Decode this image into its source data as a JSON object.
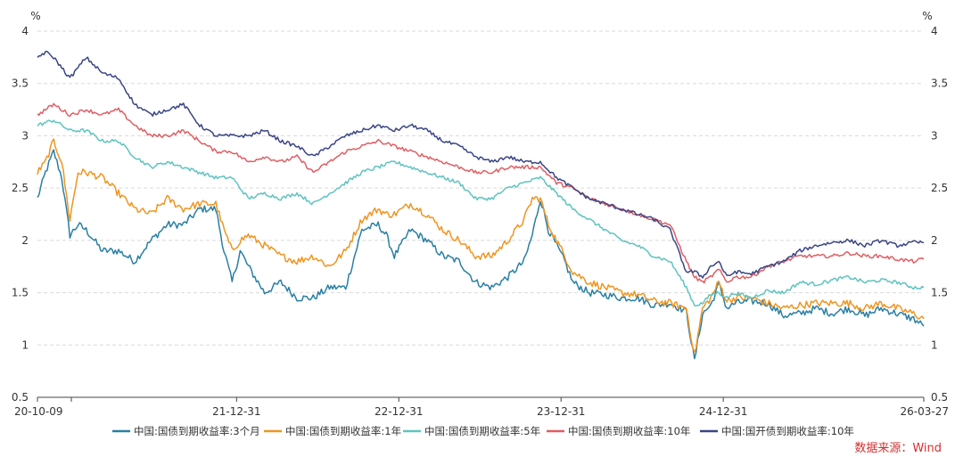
{
  "chart_data": {
    "type": "line",
    "title": "",
    "ylabel_left": "%",
    "ylabel_right": "%",
    "ylim": [
      0.5,
      4
    ],
    "yticks": [
      "0.5",
      "1",
      "1.5",
      "2",
      "2.5",
      "3",
      "3.5",
      "4"
    ],
    "grid": "horizontal dashed",
    "x_range": [
      "2020-10-09",
      "2026-03-27"
    ],
    "xticks": [
      {
        "label": "20-10-09",
        "t": 0
      },
      {
        "label": "21-12-31",
        "t": 1.2275
      },
      {
        "label": "22-12-31",
        "t": 2.2275
      },
      {
        "label": "23-12-31",
        "t": 3.2275
      },
      {
        "label": "24-12-31",
        "t": 4.2275
      },
      {
        "label": "26-03-27",
        "t": 5.4633
      }
    ],
    "x_unit": "years since 2020-10-09",
    "legend_position": "bottom",
    "series": [
      {
        "name": "中国:国债到期收益率:3个月",
        "color": "#2a7fa3",
        "x": [
          0,
          0.05,
          0.1,
          0.15,
          0.2,
          0.25,
          0.3,
          0.4,
          0.5,
          0.6,
          0.7,
          0.8,
          0.9,
          1.0,
          1.1,
          1.15,
          1.2,
          1.25,
          1.3,
          1.4,
          1.5,
          1.6,
          1.7,
          1.8,
          1.9,
          2.0,
          2.1,
          2.15,
          2.2,
          2.3,
          2.4,
          2.5,
          2.6,
          2.7,
          2.8,
          2.9,
          3.0,
          3.05,
          3.1,
          3.15,
          3.2,
          3.25,
          3.3,
          3.4,
          3.5,
          3.6,
          3.7,
          3.8,
          3.9,
          4.0,
          4.05,
          4.1,
          4.15,
          4.2,
          4.25,
          4.3,
          4.4,
          4.5,
          4.6,
          4.7,
          4.8,
          4.9,
          5.0,
          5.1,
          5.2,
          5.3,
          5.4,
          5.4633
        ],
        "y": [
          2.4,
          2.65,
          2.85,
          2.6,
          2.05,
          2.15,
          2.1,
          1.9,
          1.9,
          1.8,
          2.0,
          2.15,
          2.15,
          2.3,
          2.3,
          1.9,
          1.6,
          1.9,
          1.75,
          1.5,
          1.6,
          1.45,
          1.45,
          1.55,
          1.55,
          2.1,
          2.15,
          2.05,
          1.85,
          2.1,
          2.0,
          1.85,
          1.8,
          1.6,
          1.55,
          1.65,
          1.8,
          2.05,
          2.4,
          2.1,
          1.95,
          1.8,
          1.6,
          1.5,
          1.48,
          1.45,
          1.45,
          1.38,
          1.4,
          1.32,
          0.85,
          1.3,
          1.38,
          1.58,
          1.35,
          1.4,
          1.42,
          1.4,
          1.28,
          1.3,
          1.35,
          1.3,
          1.35,
          1.28,
          1.35,
          1.3,
          1.25,
          1.18
        ]
      },
      {
        "name": "中国:国债到期收益率:1年",
        "color": "#ef9520",
        "x": [
          0,
          0.05,
          0.1,
          0.15,
          0.2,
          0.25,
          0.3,
          0.4,
          0.5,
          0.6,
          0.7,
          0.8,
          0.9,
          1.0,
          1.1,
          1.15,
          1.2,
          1.25,
          1.3,
          1.4,
          1.5,
          1.6,
          1.7,
          1.8,
          1.9,
          2.0,
          2.1,
          2.15,
          2.2,
          2.3,
          2.4,
          2.5,
          2.6,
          2.7,
          2.8,
          2.9,
          3.0,
          3.05,
          3.1,
          3.15,
          3.2,
          3.25,
          3.3,
          3.4,
          3.5,
          3.6,
          3.7,
          3.8,
          3.9,
          4.0,
          4.05,
          4.1,
          4.15,
          4.2,
          4.25,
          4.3,
          4.4,
          4.5,
          4.6,
          4.7,
          4.8,
          4.9,
          5.0,
          5.1,
          5.2,
          5.3,
          5.4,
          5.4633
        ],
        "y": [
          2.65,
          2.75,
          2.95,
          2.75,
          2.2,
          2.65,
          2.65,
          2.6,
          2.45,
          2.3,
          2.25,
          2.4,
          2.3,
          2.35,
          2.35,
          2.1,
          1.9,
          2.0,
          2.05,
          1.95,
          1.85,
          1.8,
          1.85,
          1.75,
          1.9,
          2.2,
          2.3,
          2.25,
          2.25,
          2.35,
          2.25,
          2.1,
          2.0,
          1.85,
          1.85,
          2.0,
          2.2,
          2.4,
          2.4,
          2.15,
          2.0,
          1.85,
          1.7,
          1.6,
          1.55,
          1.5,
          1.48,
          1.42,
          1.4,
          1.35,
          0.9,
          1.35,
          1.45,
          1.6,
          1.42,
          1.45,
          1.45,
          1.4,
          1.35,
          1.38,
          1.4,
          1.4,
          1.4,
          1.35,
          1.4,
          1.35,
          1.3,
          1.25
        ]
      },
      {
        "name": "中国:国债到期收益率:5年",
        "color": "#5fc3c0",
        "x": [
          0,
          0.1,
          0.2,
          0.3,
          0.4,
          0.5,
          0.6,
          0.7,
          0.8,
          0.9,
          1.0,
          1.1,
          1.2,
          1.3,
          1.4,
          1.5,
          1.6,
          1.7,
          1.8,
          1.9,
          2.0,
          2.1,
          2.2,
          2.3,
          2.4,
          2.5,
          2.6,
          2.7,
          2.8,
          2.9,
          3.0,
          3.1,
          3.2,
          3.3,
          3.4,
          3.5,
          3.6,
          3.7,
          3.8,
          3.9,
          4.0,
          4.05,
          4.1,
          4.15,
          4.2,
          4.25,
          4.3,
          4.4,
          4.5,
          4.6,
          4.7,
          4.8,
          4.9,
          5.0,
          5.1,
          5.2,
          5.3,
          5.4,
          5.4633
        ],
        "y": [
          3.1,
          3.15,
          3.05,
          3.05,
          2.95,
          2.95,
          2.8,
          2.7,
          2.75,
          2.7,
          2.65,
          2.6,
          2.6,
          2.4,
          2.45,
          2.4,
          2.45,
          2.35,
          2.45,
          2.55,
          2.65,
          2.7,
          2.75,
          2.7,
          2.65,
          2.6,
          2.55,
          2.4,
          2.4,
          2.5,
          2.55,
          2.6,
          2.45,
          2.3,
          2.2,
          2.1,
          2.0,
          1.95,
          1.85,
          1.8,
          1.55,
          1.38,
          1.4,
          1.48,
          1.5,
          1.45,
          1.5,
          1.45,
          1.52,
          1.5,
          1.6,
          1.58,
          1.62,
          1.65,
          1.6,
          1.62,
          1.6,
          1.55,
          1.55
        ]
      },
      {
        "name": "中国:国债到期收益率:10年",
        "color": "#e05e63",
        "x": [
          0,
          0.1,
          0.2,
          0.3,
          0.4,
          0.5,
          0.6,
          0.7,
          0.8,
          0.9,
          1.0,
          1.1,
          1.2,
          1.3,
          1.4,
          1.5,
          1.6,
          1.7,
          1.8,
          1.9,
          2.0,
          2.1,
          2.2,
          2.3,
          2.4,
          2.5,
          2.6,
          2.7,
          2.8,
          2.9,
          3.0,
          3.1,
          3.2,
          3.3,
          3.4,
          3.5,
          3.6,
          3.7,
          3.8,
          3.9,
          4.0,
          4.05,
          4.1,
          4.15,
          4.2,
          4.25,
          4.3,
          4.4,
          4.5,
          4.6,
          4.7,
          4.8,
          4.9,
          5.0,
          5.1,
          5.2,
          5.3,
          5.4,
          5.4633
        ],
        "y": [
          3.2,
          3.3,
          3.2,
          3.25,
          3.2,
          3.25,
          3.1,
          3.0,
          3.0,
          3.05,
          2.95,
          2.85,
          2.85,
          2.75,
          2.8,
          2.75,
          2.8,
          2.65,
          2.75,
          2.85,
          2.9,
          2.95,
          2.9,
          2.85,
          2.8,
          2.75,
          2.7,
          2.65,
          2.65,
          2.7,
          2.7,
          2.7,
          2.55,
          2.5,
          2.4,
          2.35,
          2.3,
          2.25,
          2.2,
          2.15,
          1.8,
          1.65,
          1.6,
          1.65,
          1.72,
          1.6,
          1.65,
          1.65,
          1.75,
          1.8,
          1.85,
          1.85,
          1.85,
          1.88,
          1.85,
          1.85,
          1.82,
          1.8,
          1.82
        ]
      },
      {
        "name": "中国:国开债到期收益率:10年",
        "color": "#3a4585",
        "x": [
          0,
          0.05,
          0.1,
          0.2,
          0.3,
          0.4,
          0.5,
          0.6,
          0.7,
          0.8,
          0.9,
          1.0,
          1.1,
          1.2,
          1.3,
          1.4,
          1.5,
          1.6,
          1.7,
          1.8,
          1.9,
          2.0,
          2.1,
          2.2,
          2.3,
          2.4,
          2.5,
          2.6,
          2.7,
          2.8,
          2.9,
          3.0,
          3.1,
          3.2,
          3.3,
          3.4,
          3.5,
          3.6,
          3.7,
          3.8,
          3.9,
          4.0,
          4.05,
          4.1,
          4.15,
          4.2,
          4.25,
          4.3,
          4.4,
          4.5,
          4.6,
          4.7,
          4.8,
          4.9,
          5.0,
          5.1,
          5.2,
          5.3,
          5.4,
          5.4633
        ],
        "y": [
          3.75,
          3.8,
          3.75,
          3.55,
          3.75,
          3.6,
          3.55,
          3.3,
          3.2,
          3.25,
          3.3,
          3.1,
          3.0,
          3.0,
          3.0,
          3.05,
          2.95,
          2.9,
          2.8,
          2.9,
          3.0,
          3.05,
          3.1,
          3.05,
          3.1,
          3.05,
          2.95,
          2.9,
          2.8,
          2.75,
          2.8,
          2.75,
          2.75,
          2.6,
          2.5,
          2.4,
          2.35,
          2.3,
          2.25,
          2.2,
          2.1,
          1.7,
          1.7,
          1.65,
          1.75,
          1.8,
          1.65,
          1.7,
          1.68,
          1.75,
          1.8,
          1.9,
          1.95,
          1.98,
          2.0,
          1.95,
          2.0,
          1.95,
          1.98,
          1.98
        ]
      }
    ],
    "source": "数据来源：Wind"
  }
}
